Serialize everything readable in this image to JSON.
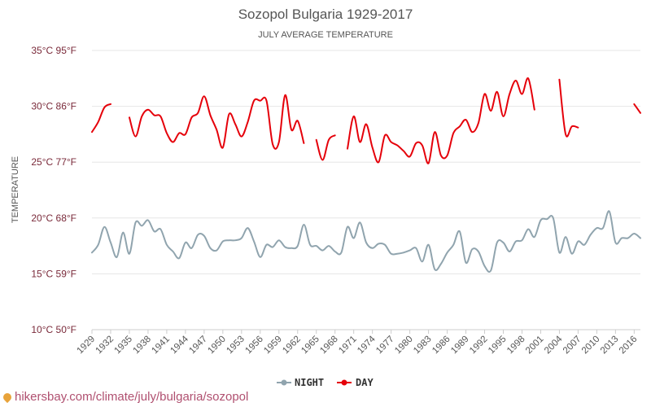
{
  "footer": {
    "text": "hikersbay.com/climate/july/bulgaria/sozopol"
  },
  "chart_data": {
    "type": "line",
    "title": "Sozopol Bulgaria 1929-2017",
    "subtitle": "JULY AVERAGE TEMPERATURE",
    "ylabel": "TEMPERATURE",
    "ylim": [
      10,
      35
    ],
    "yticks": [
      {
        "value": 35,
        "label": "35°C 95°F"
      },
      {
        "value": 30,
        "label": "30°C 86°F"
      },
      {
        "value": 25,
        "label": "25°C 77°F"
      },
      {
        "value": 20,
        "label": "20°C 68°F"
      },
      {
        "value": 15,
        "label": "15°C 59°F"
      },
      {
        "value": 10,
        "label": "10°C 50°F"
      }
    ],
    "xlim": [
      1929,
      2017
    ],
    "xticks": [
      1929,
      1932,
      1935,
      1938,
      1941,
      1944,
      1947,
      1950,
      1953,
      1956,
      1959,
      1962,
      1965,
      1968,
      1971,
      1974,
      1977,
      1980,
      1983,
      1986,
      1989,
      1992,
      1995,
      1998,
      2001,
      2004,
      2007,
      2010,
      2013,
      2016
    ],
    "grid": true,
    "legend_position": "bottom",
    "series": [
      {
        "name": "NIGHT",
        "color": "#90a4ae",
        "x": [
          1929,
          1930,
          1931,
          1932,
          1933,
          1934,
          1935,
          1936,
          1937,
          1938,
          1939,
          1940,
          1941,
          1942,
          1943,
          1944,
          1945,
          1946,
          1947,
          1948,
          1949,
          1950,
          1951,
          1952,
          1953,
          1954,
          1955,
          1956,
          1957,
          1958,
          1959,
          1960,
          1961,
          1962,
          1963,
          1964,
          1965,
          1966,
          1967,
          1968,
          1969,
          1970,
          1971,
          1972,
          1973,
          1974,
          1975,
          1976,
          1977,
          1978,
          1979,
          1980,
          1981,
          1982,
          1983,
          1984,
          1985,
          1986,
          1987,
          1988,
          1989,
          1990,
          1991,
          1992,
          1993,
          1994,
          1995,
          1996,
          1997,
          1998,
          1999,
          2000,
          2001,
          2002,
          2003,
          2004,
          2005,
          2006,
          2007,
          2008,
          2009,
          2010,
          2011,
          2012,
          2013,
          2014,
          2015,
          2016,
          2017
        ],
        "values": [
          16.9,
          17.6,
          19.2,
          17.8,
          16.5,
          18.7,
          16.8,
          19.6,
          19.3,
          19.8,
          18.8,
          19.0,
          17.6,
          17.0,
          16.4,
          17.8,
          17.3,
          18.5,
          18.4,
          17.3,
          17.1,
          17.9,
          18.0,
          18.0,
          18.2,
          19.1,
          17.9,
          16.5,
          17.6,
          17.4,
          18.0,
          17.4,
          17.3,
          17.5,
          19.4,
          17.6,
          17.5,
          17.1,
          17.5,
          17.0,
          16.9,
          19.2,
          18.2,
          19.6,
          17.8,
          17.3,
          17.7,
          17.6,
          16.8,
          16.8,
          16.9,
          17.1,
          17.3,
          16.1,
          17.6,
          15.4,
          15.9,
          16.9,
          17.6,
          18.8,
          16.0,
          17.2,
          17.0,
          15.7,
          15.3,
          17.8,
          17.8,
          17.0,
          17.9,
          18.0,
          19.0,
          18.3,
          19.8,
          19.9,
          20.0,
          16.9,
          18.3,
          16.8,
          17.9,
          17.6,
          18.5,
          19.1,
          19.1,
          20.6,
          17.8,
          18.2,
          18.2,
          18.6,
          18.2
        ]
      },
      {
        "name": "DAY",
        "color": "#e5000a",
        "x": [
          1929,
          1930,
          1931,
          1932,
          1933,
          1934,
          1935,
          1936,
          1937,
          1938,
          1939,
          1940,
          1941,
          1942,
          1943,
          1944,
          1945,
          1946,
          1947,
          1948,
          1949,
          1950,
          1951,
          1952,
          1953,
          1954,
          1955,
          1956,
          1957,
          1958,
          1959,
          1960,
          1961,
          1962,
          1963,
          1964,
          1965,
          1966,
          1967,
          1968,
          1969,
          1970,
          1971,
          1972,
          1973,
          1974,
          1975,
          1976,
          1977,
          1978,
          1979,
          1980,
          1981,
          1982,
          1983,
          1984,
          1985,
          1986,
          1987,
          1988,
          1989,
          1990,
          1991,
          1992,
          1993,
          1994,
          1995,
          1996,
          1997,
          1998,
          1999,
          2000,
          2001,
          2002,
          2003,
          2004,
          2005,
          2006,
          2007,
          2008,
          2009,
          2010,
          2011,
          2012,
          2013,
          2014,
          2015,
          2016,
          2017
        ],
        "values": [
          27.7,
          28.6,
          29.9,
          30.2,
          null,
          null,
          29.0,
          27.3,
          29.1,
          29.7,
          29.2,
          29.1,
          27.6,
          26.8,
          27.6,
          27.5,
          29.0,
          29.4,
          30.9,
          29.2,
          27.9,
          26.3,
          29.3,
          28.4,
          27.3,
          28.6,
          30.5,
          30.5,
          30.5,
          26.6,
          26.8,
          31.0,
          27.9,
          28.7,
          26.7,
          null,
          27.0,
          25.2,
          27.0,
          27.4,
          null,
          26.2,
          29.1,
          26.8,
          28.4,
          26.3,
          25.0,
          27.4,
          26.8,
          26.5,
          26.0,
          25.5,
          26.7,
          26.5,
          24.9,
          27.7,
          25.6,
          25.6,
          27.6,
          28.2,
          28.8,
          27.7,
          28.5,
          31.1,
          29.6,
          31.3,
          29.1,
          31.1,
          32.3,
          31.1,
          32.5,
          29.7,
          null,
          null,
          null,
          32.4,
          27.5,
          28.2,
          28.1,
          null,
          null,
          null,
          null,
          null,
          null,
          null,
          null,
          30.2,
          29.4
        ]
      }
    ]
  }
}
